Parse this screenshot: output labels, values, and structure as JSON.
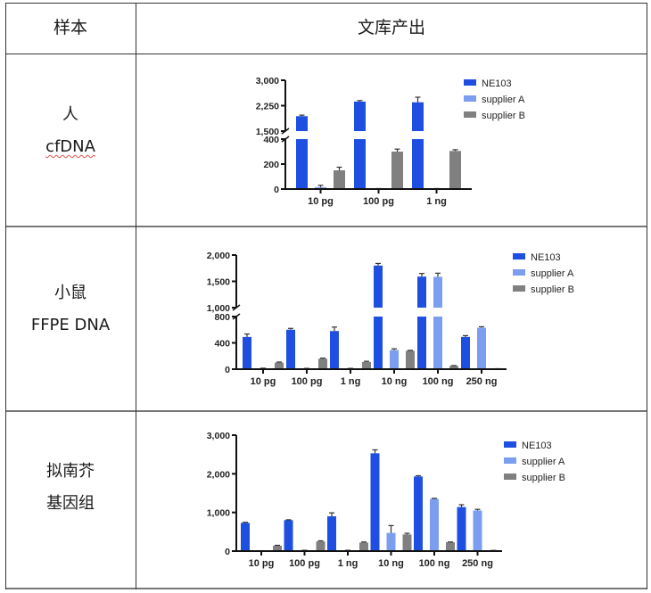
{
  "table": {
    "header": {
      "sample": "样本",
      "output": "文库产出"
    },
    "rows": [
      {
        "line1": "人",
        "line2": "cfDNA"
      },
      {
        "line1": "小鼠",
        "line2": "FFPE DNA"
      },
      {
        "line1": "拟南芥",
        "line2": "基因组"
      }
    ]
  },
  "colors": {
    "NE103": "#1f4fe0",
    "supplier A": "#7b9ef0",
    "supplier B": "#808080",
    "axis": "#111111"
  },
  "chart_data": [
    {
      "type": "bar",
      "title": "",
      "xlabel": "",
      "ylabel": "",
      "categories": [
        "10 pg",
        "100 pg",
        "1 ng"
      ],
      "series": [
        {
          "name": "NE103",
          "values": [
            1940,
            2370,
            2350
          ],
          "errors": [
            30,
            30,
            150
          ]
        },
        {
          "name": "supplier A",
          "values": [
            15,
            2,
            2
          ],
          "errors": [
            15,
            2,
            2
          ]
        },
        {
          "name": "supplier B",
          "values": [
            150,
            300,
            305
          ],
          "errors": [
            25,
            20,
            10
          ]
        }
      ],
      "y_axis_break": {
        "lower": [
          0,
          400
        ],
        "upper": [
          1500,
          3000
        ]
      },
      "yticks_lower": [
        0,
        200,
        400
      ],
      "yticks_lower_labels": [
        "0",
        "200",
        "400"
      ],
      "yticks_upper": [
        1500,
        2250,
        3000
      ],
      "yticks_upper_labels": [
        "1,500",
        "2,250",
        "3,000"
      ],
      "legend": [
        "NE103",
        "supplier A",
        "supplier B"
      ],
      "legend_position": "right",
      "grid": false
    },
    {
      "type": "bar",
      "title": "",
      "xlabel": "",
      "ylabel": "",
      "categories": [
        "10 pg",
        "100 pg",
        "1 ng",
        "10 ng",
        "100 ng",
        "250 ng"
      ],
      "series": [
        {
          "name": "NE103",
          "values": [
            490,
            600,
            580,
            1800,
            1590,
            490
          ],
          "errors": [
            45,
            20,
            60,
            40,
            60,
            20
          ]
        },
        {
          "name": "supplier A",
          "values": [
            10,
            0,
            0,
            290,
            1585,
            630
          ],
          "errors": [
            5,
            0,
            0,
            20,
            70,
            15
          ]
        },
        {
          "name": "supplier B",
          "values": [
            100,
            160,
            110,
            280,
            50,
            5
          ],
          "errors": [
            8,
            8,
            10,
            6,
            5,
            2
          ]
        }
      ],
      "y_axis_break": {
        "lower": [
          0,
          800
        ],
        "upper": [
          1000,
          2000
        ]
      },
      "yticks_lower": [
        0,
        400,
        800
      ],
      "yticks_lower_labels": [
        "0",
        "400",
        "800"
      ],
      "yticks_upper": [
        1000,
        1500,
        2000
      ],
      "yticks_upper_labels": [
        "1,000",
        "1,500",
        "2,000"
      ],
      "legend": [
        "NE103",
        "supplier A",
        "supplier B"
      ],
      "legend_position": "right",
      "grid": false
    },
    {
      "type": "bar",
      "title": "",
      "xlabel": "",
      "ylabel": "",
      "categories": [
        "10 pg",
        "100 pg",
        "1 ng",
        "10 ng",
        "100 ng",
        "250 ng"
      ],
      "series": [
        {
          "name": "NE103",
          "values": [
            730,
            800,
            900,
            2530,
            1930,
            1140
          ],
          "errors": [
            15,
            10,
            90,
            90,
            20,
            60
          ]
        },
        {
          "name": "supplier A",
          "values": [
            5,
            0,
            0,
            470,
            1350,
            1050
          ],
          "errors": [
            5,
            0,
            0,
            190,
            15,
            30
          ]
        },
        {
          "name": "supplier B",
          "values": [
            140,
            250,
            220,
            430,
            230,
            15
          ],
          "errors": [
            10,
            15,
            15,
            30,
            5,
            3
          ]
        }
      ],
      "ylim": [
        0,
        3000
      ],
      "yticks": [
        0,
        1000,
        2000,
        3000
      ],
      "yticks_labels": [
        "0",
        "1,000",
        "2,000",
        "3,000"
      ],
      "legend": [
        "NE103",
        "supplier A",
        "supplier B"
      ],
      "legend_position": "right",
      "grid": false
    }
  ]
}
